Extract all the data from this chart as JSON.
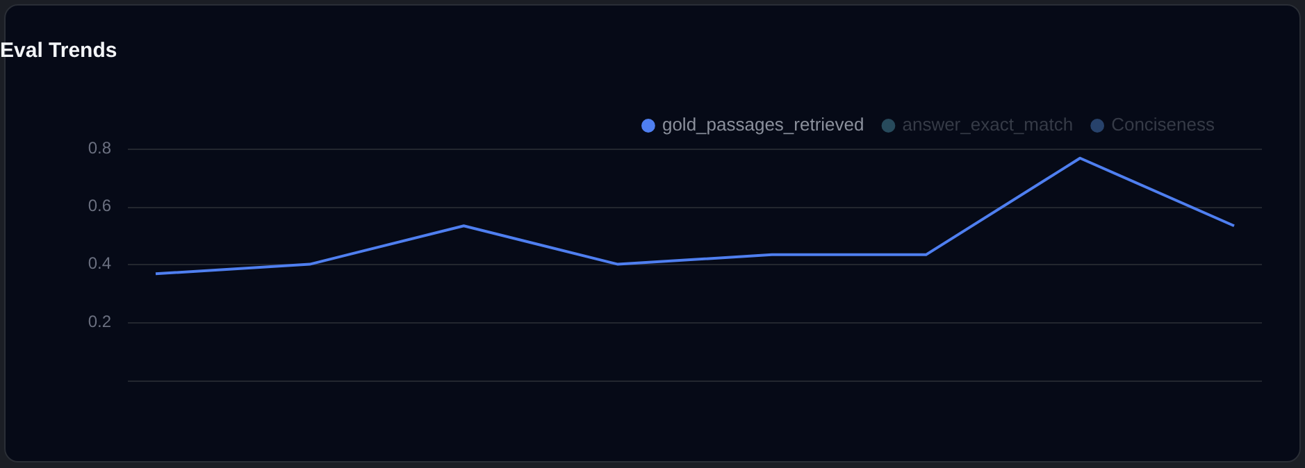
{
  "chart_data": {
    "type": "line",
    "title": "Eval Trends",
    "categories": [
      null,
      null,
      null,
      null,
      null,
      null,
      null,
      null
    ],
    "series": [
      {
        "name": "gold_passages_retrieved",
        "color": "#4f7ff0",
        "values": [
          0.367,
          0.4,
          0.533,
          0.4,
          0.433,
          0.433,
          0.767,
          0.533
        ]
      },
      {
        "name": "answer_exact_match",
        "color": "#274a5c",
        "values": [
          null,
          null,
          null,
          null,
          null,
          null,
          null,
          null
        ]
      },
      {
        "name": "Conciseness",
        "color": "#27426b",
        "values": [
          null,
          null,
          null,
          null,
          null,
          null,
          null,
          null
        ]
      }
    ],
    "ylim": [
      0,
      0.8
    ],
    "yticks": [
      {
        "value": 0,
        "label": null
      },
      0.2,
      0.4,
      0.6,
      0.8
    ],
    "grid": "y",
    "legend": "top right",
    "marker": "none",
    "line_style": "solid"
  }
}
